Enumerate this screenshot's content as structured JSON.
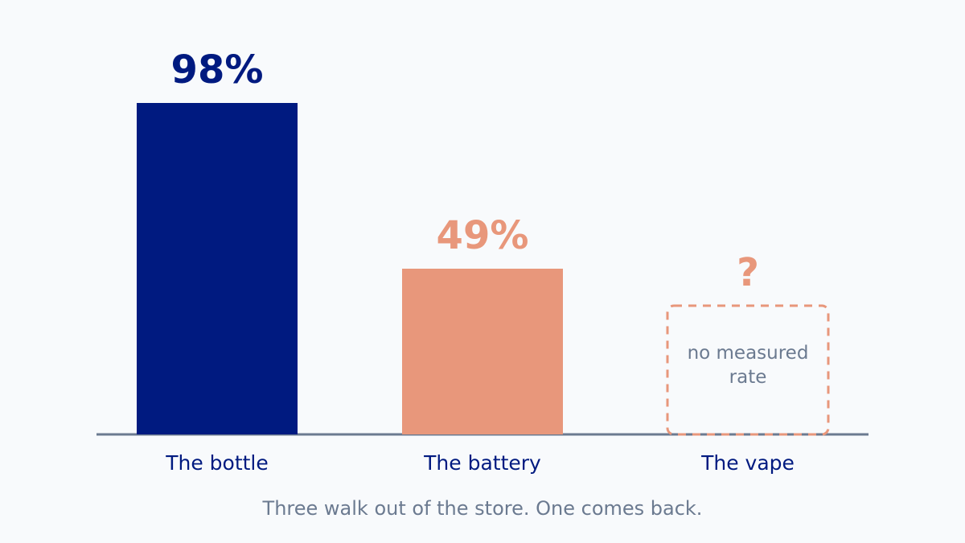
{
  "chart_data": {
    "type": "bar",
    "categories": [
      "The bottle",
      "The battery",
      "The vape"
    ],
    "values": [
      98,
      49,
      null
    ],
    "value_labels": [
      "98%",
      "49%",
      "?"
    ],
    "colors": [
      "#001a80",
      "#e8977b",
      "#e8977b"
    ],
    "annotation": "no measured rate",
    "caption": "Three walk out of the store. One comes back."
  }
}
